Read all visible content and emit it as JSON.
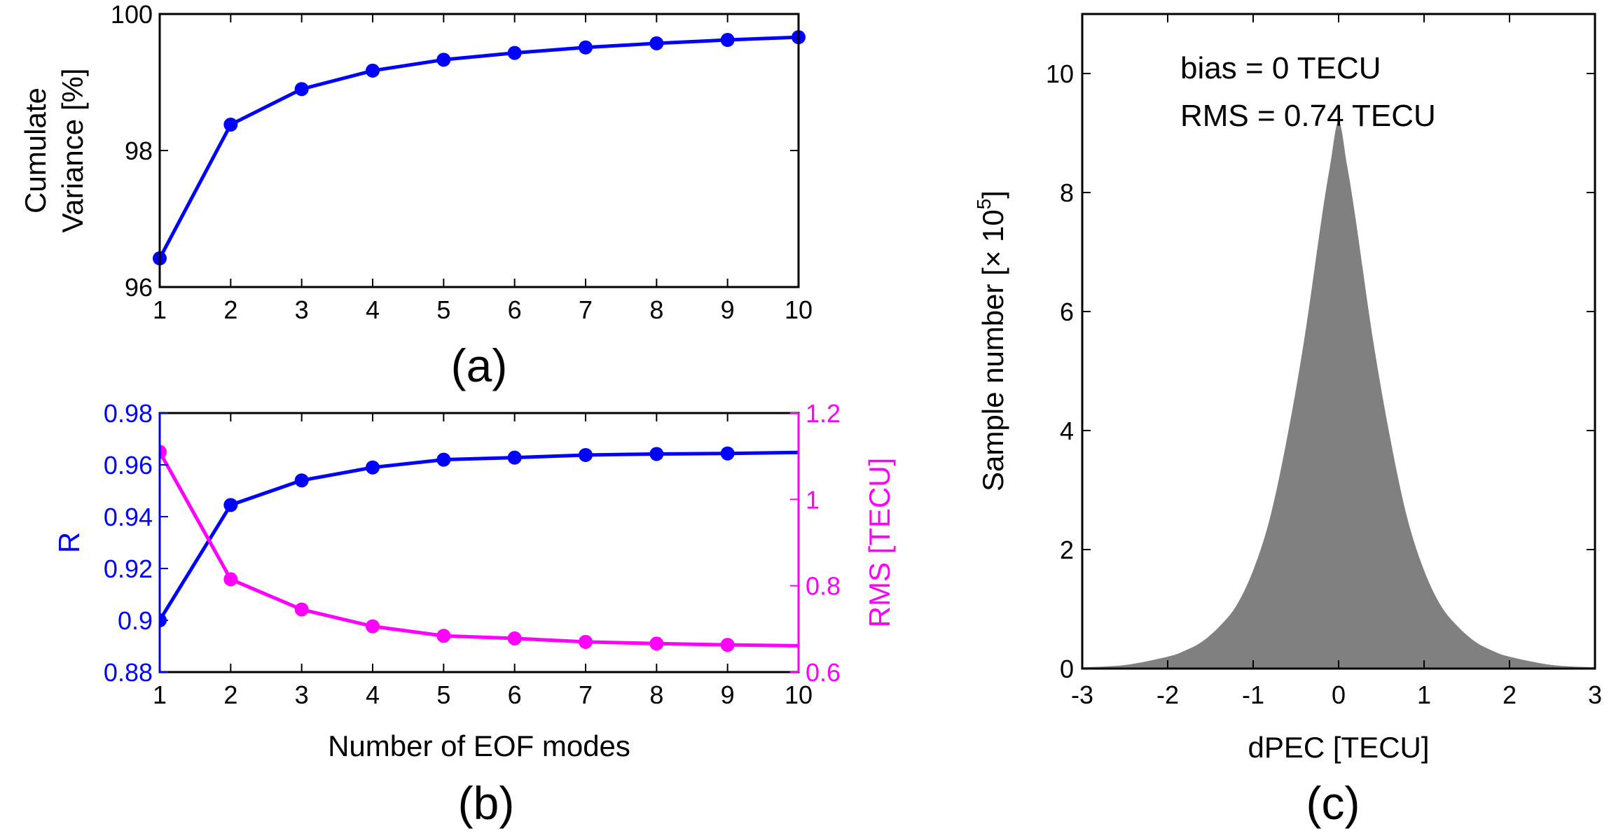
{
  "chart_data": [
    {
      "type": "line",
      "panel": "(a)",
      "x": [
        1,
        2,
        3,
        4,
        5,
        6,
        7,
        8,
        9,
        10
      ],
      "series": [
        {
          "name": "Cumulate Variance",
          "values": [
            96.42,
            98.38,
            98.9,
            99.17,
            99.33,
            99.43,
            99.51,
            99.57,
            99.62,
            99.66
          ]
        }
      ],
      "xlabel": "",
      "ylabel_lines": [
        "Cumulate",
        "Variance [%]"
      ],
      "xlim": [
        1,
        10
      ],
      "ylim": [
        96,
        100
      ],
      "xticks": [
        1,
        2,
        3,
        4,
        5,
        6,
        7,
        8,
        9,
        10
      ],
      "yticks": [
        96,
        98,
        100
      ],
      "colors": {
        "line": "#0000ff"
      }
    },
    {
      "type": "line",
      "panel": "(b)",
      "x": [
        1,
        2,
        3,
        4,
        5,
        6,
        7,
        8,
        9,
        10
      ],
      "series": [
        {
          "name": "R",
          "axis": "left",
          "values": [
            0.9,
            0.9445,
            0.954,
            0.959,
            0.962,
            0.9628,
            0.9638,
            0.9642,
            0.9644,
            0.9648
          ]
        },
        {
          "name": "RMS",
          "axis": "right",
          "values": [
            1.11,
            0.815,
            0.745,
            0.706,
            0.684,
            0.678,
            0.67,
            0.666,
            0.663,
            0.661
          ]
        }
      ],
      "xlabel": "Number of EOF modes",
      "ylabel_left": "R",
      "ylabel_right": "RMS [TECU]",
      "xlim": [
        1,
        10
      ],
      "ylim_left": [
        0.88,
        0.98
      ],
      "ylim_right": [
        0.6,
        1.2
      ],
      "xticks": [
        1,
        2,
        3,
        4,
        5,
        6,
        7,
        8,
        9,
        10
      ],
      "yticks_left": [
        "0.88",
        "0.9",
        "0.92",
        "0.94",
        "0.96",
        "0.98"
      ],
      "yticks_right": [
        "0.6",
        "0.8",
        "1",
        "1.2"
      ],
      "colors": {
        "left": "#0000ff",
        "right": "#ff00ff"
      }
    },
    {
      "type": "area",
      "panel": "(c)",
      "xlabel": "dPEC [TECU]",
      "ylabel": "Sample number [× 10",
      "ylabel_exp": "5",
      "ylabel_close": "]",
      "xlim": [
        -3,
        3
      ],
      "ylim": [
        0,
        11
      ],
      "xticks": [
        "-3",
        "-2",
        "-1",
        "0",
        "1",
        "2",
        "3"
      ],
      "yticks": [
        "0",
        "2",
        "4",
        "6",
        "8",
        "10"
      ],
      "x": [
        -3,
        -2.5,
        -2,
        -1.8,
        -1.6,
        -1.4,
        -1.2,
        -1.0,
        -0.8,
        -0.6,
        -0.4,
        -0.2,
        -0.1,
        0,
        0.1,
        0.2,
        0.4,
        0.6,
        0.8,
        1.0,
        1.2,
        1.4,
        1.6,
        1.8,
        2.0,
        2.5,
        3.0
      ],
      "values": [
        0.02,
        0.06,
        0.2,
        0.3,
        0.45,
        0.7,
        1.05,
        1.65,
        2.55,
        3.9,
        5.55,
        7.55,
        8.45,
        9.2,
        8.45,
        7.55,
        5.55,
        3.9,
        2.55,
        1.65,
        1.05,
        0.7,
        0.45,
        0.3,
        0.2,
        0.06,
        0.02
      ],
      "annotations": [
        "bias  = 0 TECU",
        "RMS = 0.74 TECU"
      ],
      "colors": {
        "fill": "#808080"
      }
    }
  ]
}
